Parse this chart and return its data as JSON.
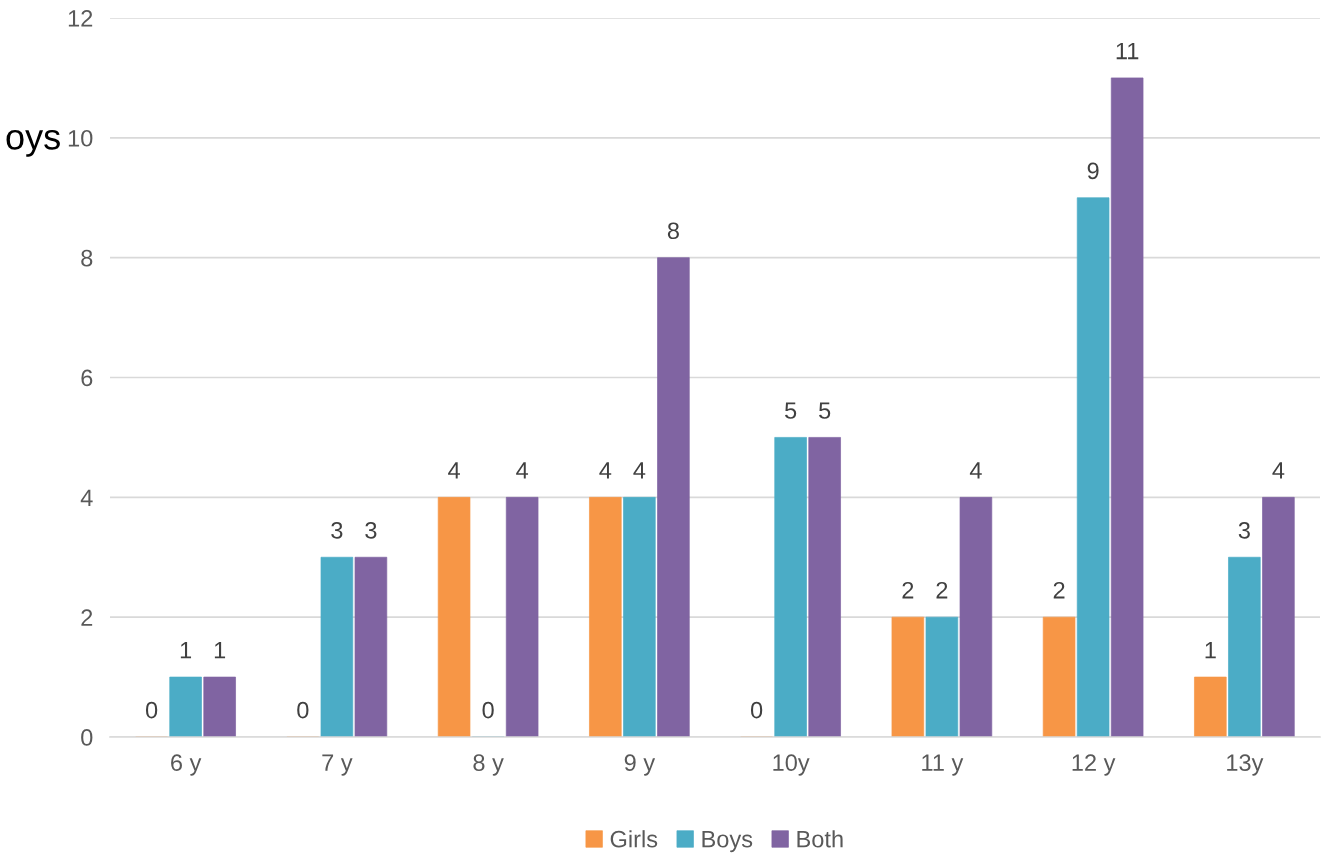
{
  "chart_data": {
    "type": "bar",
    "categories": [
      "6 y",
      "7 y",
      "8 y",
      "9 y",
      "10y",
      "11 y",
      "12 y",
      "13y"
    ],
    "series": [
      {
        "name": "Girls",
        "color": "#f79646",
        "values": [
          0,
          0,
          4,
          4,
          0,
          2,
          2,
          1
        ]
      },
      {
        "name": "Boys",
        "color": "#4bacc6",
        "values": [
          1,
          3,
          0,
          4,
          5,
          2,
          9,
          3
        ]
      },
      {
        "name": "Both",
        "color": "#8064a2",
        "values": [
          1,
          3,
          4,
          8,
          5,
          4,
          11,
          4
        ]
      }
    ],
    "ylim": [
      0,
      12
    ],
    "yticks": [
      0,
      2,
      4,
      6,
      8,
      10,
      12
    ],
    "grid": "y",
    "legend": "bottom",
    "data_labels": true,
    "annotations": [
      "oys"
    ]
  }
}
